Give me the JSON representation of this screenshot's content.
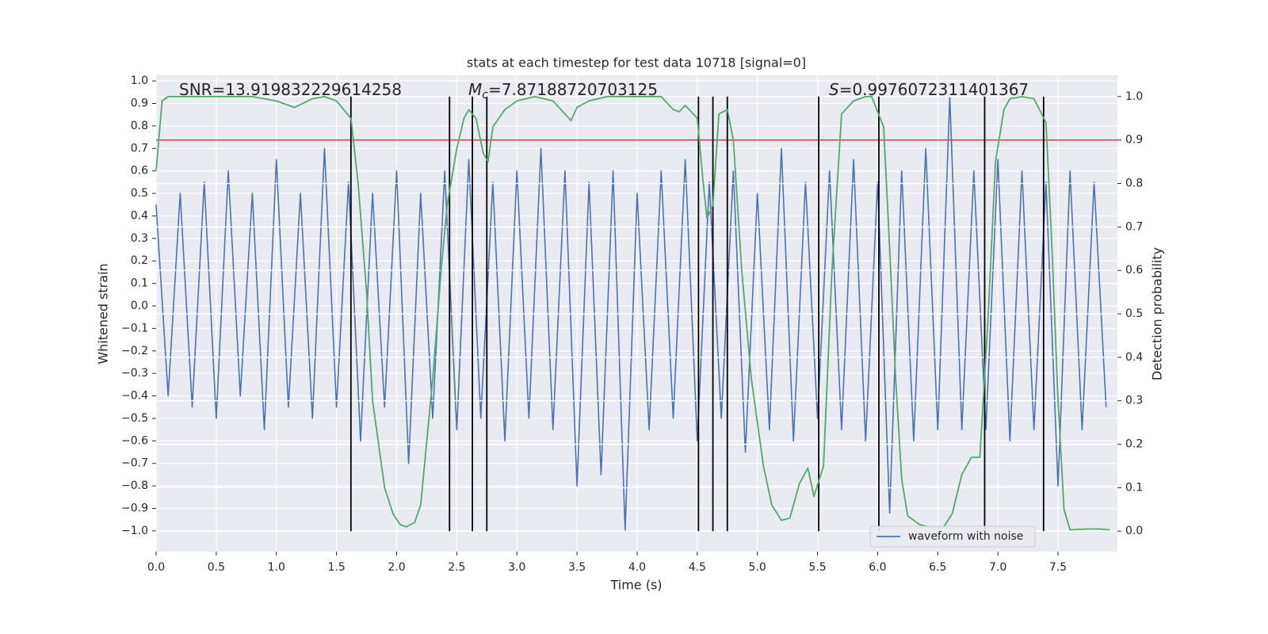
{
  "chart_data": {
    "type": "line",
    "title": "stats at each timestep for test data 10718 [signal=0]",
    "xlabel": "Time (s)",
    "ylabel": "Whitened strain",
    "y2label": "Detection probability",
    "xlim": [
      0,
      7.994
    ],
    "ylim": [
      -1.092,
      1.025
    ],
    "y2lim": [
      -0.047,
      1.049
    ],
    "xticks": [
      {
        "value": 0,
        "label": "0.0"
      },
      {
        "value": 0.5,
        "label": "0.5"
      },
      {
        "value": 1,
        "label": "1.0"
      },
      {
        "value": 1.5,
        "label": "1.5"
      },
      {
        "value": 2,
        "label": "2.0"
      },
      {
        "value": 2.5,
        "label": "2.5"
      },
      {
        "value": 3,
        "label": "3.0"
      },
      {
        "value": 3.5,
        "label": "3.5"
      },
      {
        "value": 4,
        "label": "4.0"
      },
      {
        "value": 4.5,
        "label": "4.5"
      },
      {
        "value": 5,
        "label": "5.0"
      },
      {
        "value": 5.5,
        "label": "5.5"
      },
      {
        "value": 6,
        "label": "6.0"
      },
      {
        "value": 6.5,
        "label": "6.5"
      },
      {
        "value": 7,
        "label": "7.0"
      },
      {
        "value": 7.5,
        "label": "7.5"
      }
    ],
    "yticks": [
      {
        "value": -1,
        "label": "−1.0"
      },
      {
        "value": -0.9,
        "label": "−0.9"
      },
      {
        "value": -0.8,
        "label": "−0.8"
      },
      {
        "value": -0.7,
        "label": "−0.7"
      },
      {
        "value": -0.6,
        "label": "−0.6"
      },
      {
        "value": -0.5,
        "label": "−0.5"
      },
      {
        "value": -0.4,
        "label": "−0.4"
      },
      {
        "value": -0.3,
        "label": "−0.3"
      },
      {
        "value": -0.2,
        "label": "−0.2"
      },
      {
        "value": -0.1,
        "label": "−0.1"
      },
      {
        "value": 0,
        "label": "0.0"
      },
      {
        "value": 0.1,
        "label": "0.1"
      },
      {
        "value": 0.2,
        "label": "0.2"
      },
      {
        "value": 0.3,
        "label": "0.3"
      },
      {
        "value": 0.4,
        "label": "0.4"
      },
      {
        "value": 0.5,
        "label": "0.5"
      },
      {
        "value": 0.6,
        "label": "0.6"
      },
      {
        "value": 0.7,
        "label": "0.7"
      },
      {
        "value": 0.8,
        "label": "0.8"
      },
      {
        "value": 0.9,
        "label": "0.9"
      },
      {
        "value": 1,
        "label": "1.0"
      }
    ],
    "y2ticks": [
      {
        "value": 0,
        "label": "0.0"
      },
      {
        "value": 0.1,
        "label": "0.1"
      },
      {
        "value": 0.2,
        "label": "0.2"
      },
      {
        "value": 0.3,
        "label": "0.3"
      },
      {
        "value": 0.4,
        "label": "0.4"
      },
      {
        "value": 0.5,
        "label": "0.5"
      },
      {
        "value": 0.6,
        "label": "0.6"
      },
      {
        "value": 0.7,
        "label": "0.7"
      },
      {
        "value": 0.8,
        "label": "0.8"
      },
      {
        "value": 0.9,
        "label": "0.9"
      },
      {
        "value": 1,
        "label": "1.0"
      }
    ],
    "grid": true,
    "legend": "lower right",
    "threshold": 0.9,
    "threshold_color": "#c44e52",
    "vlines": [
      1.62,
      2.44,
      2.63,
      2.75,
      4.51,
      4.63,
      4.75,
      5.51,
      6.01,
      6.89,
      7.38
    ],
    "vline_range": [
      0,
      1
    ],
    "vline_color": "#000000",
    "annotations": [
      {
        "text": "SNR=13.919832229614258"
      },
      {
        "symbol": "M",
        "subscript": "c",
        "text": "=7.87188720703125"
      },
      {
        "symbol": "S",
        "text": "=0.9976072311401367"
      }
    ],
    "series": [
      {
        "name": "waveform with noise",
        "color": "#4c72b0",
        "axis": "y",
        "x": [
          0,
          0.1,
          0.2,
          0.3,
          0.4,
          0.5,
          0.6,
          0.7,
          0.8,
          0.9,
          1,
          1.1,
          1.2,
          1.3,
          1.4,
          1.5,
          1.6,
          1.7,
          1.8,
          1.9,
          2,
          2.1,
          2.2,
          2.3,
          2.4,
          2.5,
          2.6,
          2.7,
          2.8,
          2.9,
          3,
          3.1,
          3.2,
          3.3,
          3.4,
          3.5,
          3.6,
          3.7,
          3.8,
          3.9,
          4,
          4.1,
          4.2,
          4.3,
          4.4,
          4.5,
          4.6,
          4.7,
          4.8,
          4.9,
          5,
          5.1,
          5.2,
          5.3,
          5.4,
          5.5,
          5.6,
          5.7,
          5.8,
          5.9,
          6,
          6.1,
          6.2,
          6.3,
          6.4,
          6.5,
          6.6,
          6.7,
          6.8,
          6.9,
          7,
          7.1,
          7.2,
          7.3,
          7.4,
          7.5,
          7.6,
          7.7,
          7.8,
          7.9
        ],
        "values": [
          0.45,
          -0.4,
          0.5,
          -0.45,
          0.55,
          -0.5,
          0.6,
          -0.4,
          0.5,
          -0.55,
          0.65,
          -0.45,
          0.5,
          -0.5,
          0.7,
          -0.45,
          0.55,
          -0.6,
          0.5,
          -0.45,
          0.6,
          -0.7,
          0.5,
          -0.5,
          0.6,
          -0.55,
          0.65,
          -0.5,
          0.55,
          -0.6,
          0.6,
          -0.5,
          0.7,
          -0.55,
          0.6,
          -0.8,
          0.55,
          -0.75,
          0.6,
          -1.0,
          0.5,
          -0.55,
          0.6,
          -0.5,
          0.65,
          -0.6,
          0.55,
          -0.5,
          0.6,
          -0.65,
          0.5,
          -0.55,
          0.7,
          -0.6,
          0.55,
          -0.5,
          0.6,
          -0.55,
          0.65,
          -0.6,
          0.55,
          -0.92,
          0.6,
          -0.6,
          0.7,
          -0.55,
          0.93,
          -0.55,
          0.6,
          -0.55,
          0.65,
          -0.6,
          0.6,
          -0.55,
          0.55,
          -0.8,
          0.6,
          -0.55,
          0.55,
          -0.45
        ]
      },
      {
        "color": "#55a868",
        "axis": "y2",
        "x": [
          0,
          0.05,
          0.1,
          0.5,
          0.8,
          1,
          1.15,
          1.3,
          1.4,
          1.5,
          1.62,
          1.68,
          1.75,
          1.8,
          1.85,
          1.9,
          1.97,
          2.03,
          2.08,
          2.15,
          2.2,
          2.3,
          2.37,
          2.42,
          2.5,
          2.56,
          2.6,
          2.66,
          2.72,
          2.76,
          2.8,
          2.9,
          3,
          3.15,
          3.3,
          3.4,
          3.45,
          3.5,
          3.6,
          3.75,
          4,
          4.2,
          4.3,
          4.35,
          4.4,
          4.5,
          4.55,
          4.58,
          4.63,
          4.68,
          4.75,
          4.8,
          4.87,
          4.95,
          5.05,
          5.12,
          5.2,
          5.27,
          5.35,
          5.42,
          5.47,
          5.55,
          5.62,
          5.7,
          5.8,
          5.9,
          5.95,
          6.05,
          6.1,
          6.15,
          6.2,
          6.25,
          6.35,
          6.45,
          6.55,
          6.62,
          6.7,
          6.78,
          6.85,
          6.92,
          6.98,
          7.05,
          7.1,
          7.2,
          7.3,
          7.4,
          7.45,
          7.5,
          7.55,
          7.6,
          7.75,
          7.85,
          7.93
        ],
        "values": [
          0.83,
          0.99,
          1.0,
          1.0,
          1.0,
          0.99,
          0.975,
          0.995,
          1.0,
          0.99,
          0.95,
          0.8,
          0.55,
          0.3,
          0.2,
          0.1,
          0.04,
          0.015,
          0.01,
          0.02,
          0.06,
          0.35,
          0.6,
          0.75,
          0.88,
          0.95,
          0.97,
          0.95,
          0.87,
          0.85,
          0.93,
          0.97,
          0.99,
          1.0,
          0.99,
          0.96,
          0.945,
          0.975,
          0.99,
          1.0,
          1.0,
          1.0,
          0.97,
          0.965,
          0.98,
          0.95,
          0.8,
          0.72,
          0.75,
          0.96,
          0.97,
          0.9,
          0.6,
          0.35,
          0.15,
          0.06,
          0.025,
          0.03,
          0.11,
          0.145,
          0.08,
          0.15,
          0.6,
          0.96,
          0.99,
          1.0,
          1.0,
          0.93,
          0.65,
          0.35,
          0.12,
          0.035,
          0.015,
          0.008,
          0.01,
          0.04,
          0.13,
          0.17,
          0.17,
          0.5,
          0.85,
          0.97,
          0.995,
          1.0,
          0.995,
          0.94,
          0.65,
          0.3,
          0.05,
          0.003,
          0.005,
          0.005,
          0.003
        ]
      }
    ]
  }
}
